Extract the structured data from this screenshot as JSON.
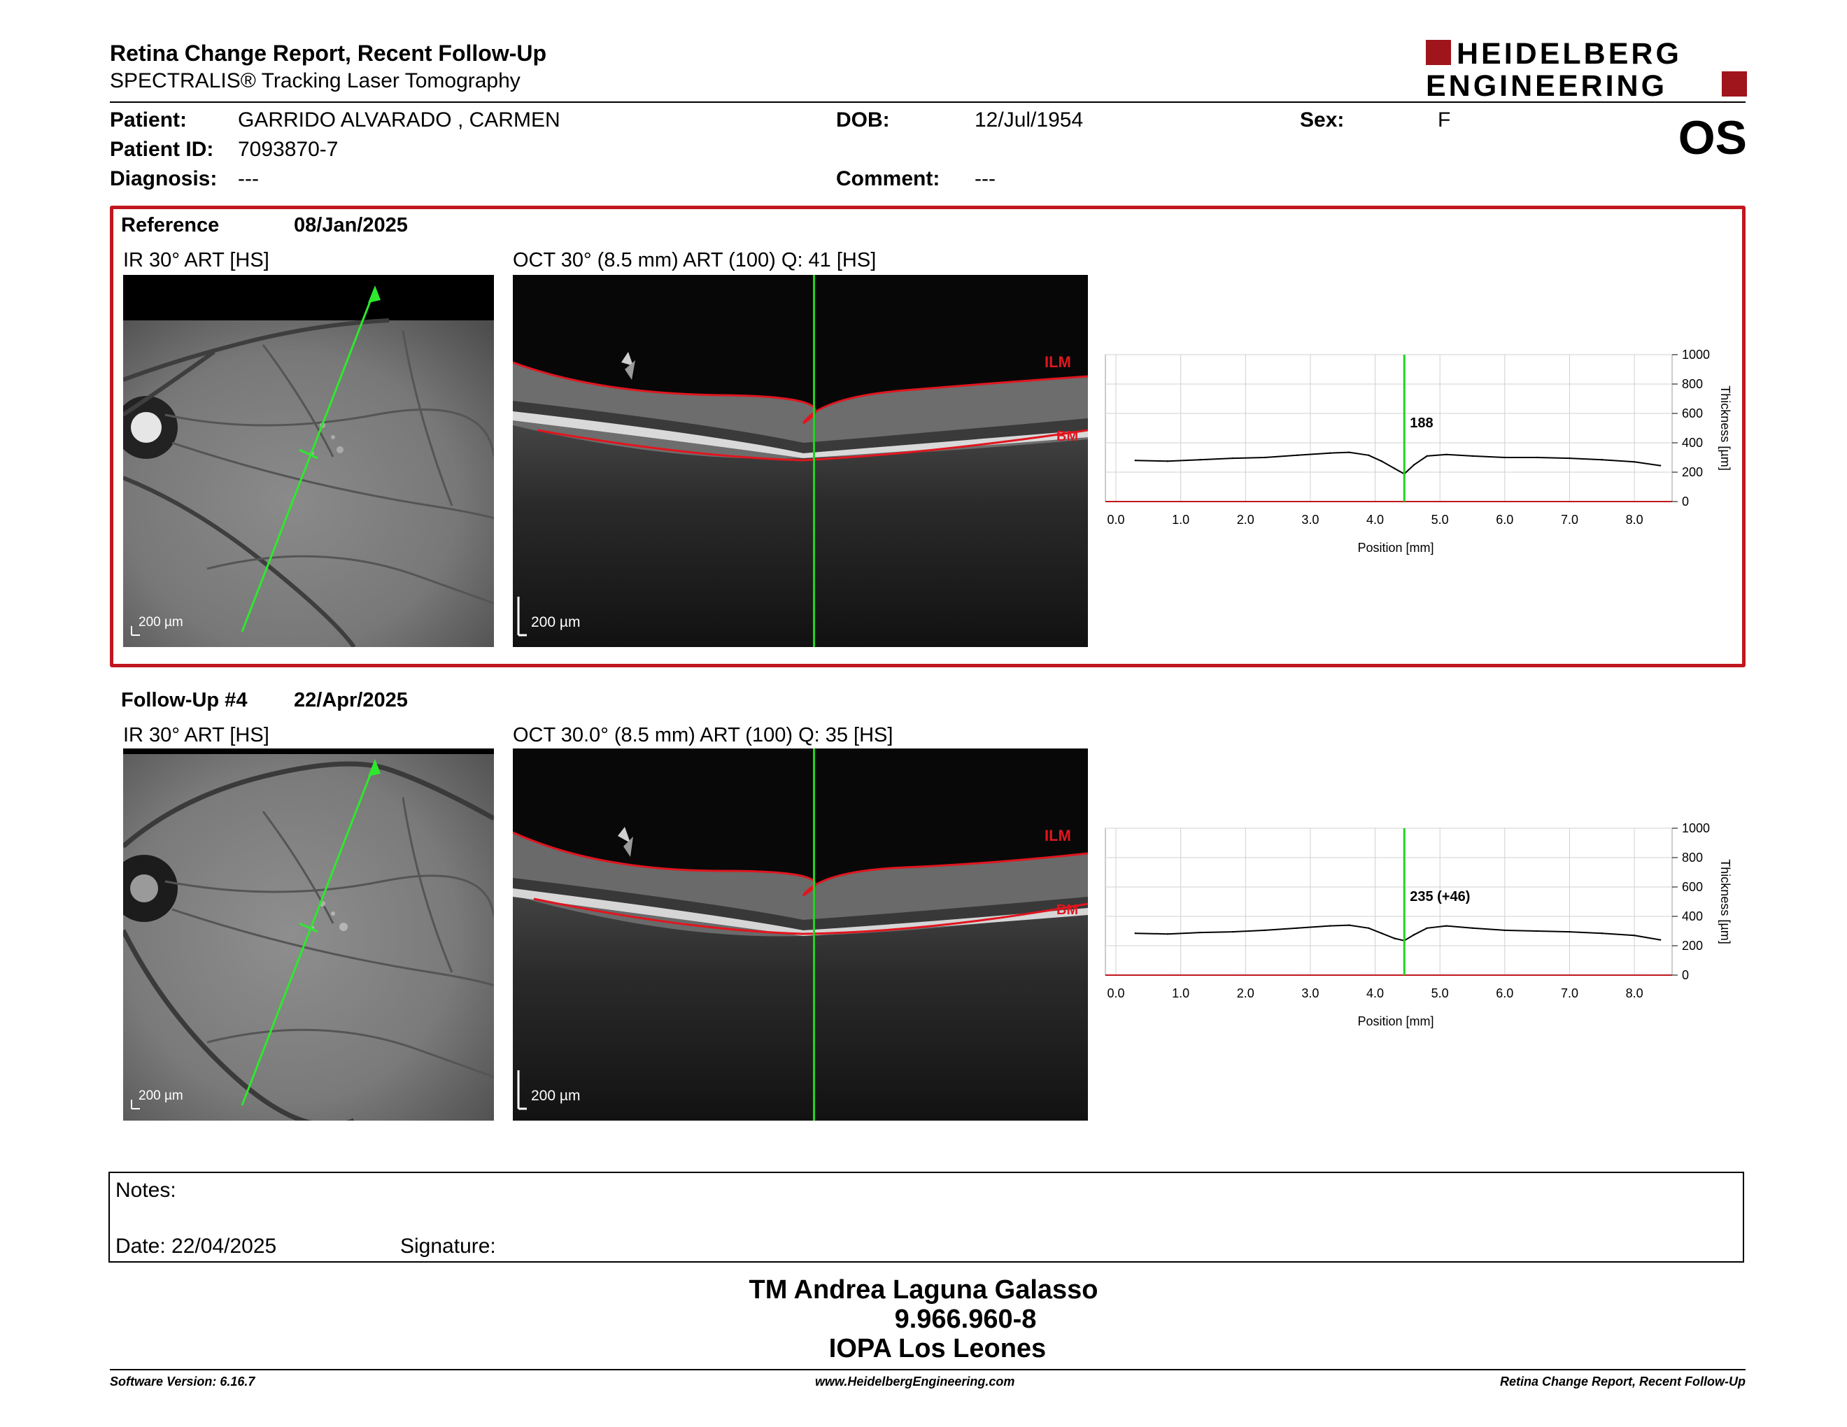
{
  "header": {
    "title": "Retina Change Report, Recent Follow-Up",
    "subtitle": "SPECTRALIS® Tracking Laser Tomography",
    "logo_line1": "HEIDELBERG",
    "logo_line2": "ENGINEERING",
    "eye": "OS"
  },
  "patient": {
    "patient_label": "Patient:",
    "patient_value": "GARRIDO ALVARADO , CARMEN",
    "id_label": "Patient ID:",
    "id_value": "7093870-7",
    "diagnosis_label": "Diagnosis:",
    "diagnosis_value": "---",
    "dob_label": "DOB:",
    "dob_value": "12/Jul/1954",
    "comment_label": "Comment:",
    "comment_value": "---",
    "sex_label": "Sex:",
    "sex_value": "F"
  },
  "reference": {
    "label": "Reference",
    "date": "08/Jan/2025",
    "ir_title": "IR 30° ART [HS]",
    "oct_title": "OCT 30° (8.5 mm) ART (100) Q: 41 [HS]",
    "ir_scale": "200 µm",
    "oct_scale": "200 µm",
    "ilm": "ILM",
    "bm": "BM"
  },
  "followup": {
    "label": "Follow-Up #4",
    "date": "22/Apr/2025",
    "ir_title": "IR 30° ART [HS]",
    "oct_title": "OCT 30.0° (8.5 mm) ART (100) Q: 35 [HS]",
    "ir_scale": "200 µm",
    "oct_scale": "200 µm",
    "ilm": "ILM",
    "bm": "BM"
  },
  "chart_data": [
    {
      "type": "line",
      "ylabel": "Thickness [µm]",
      "xlabel": "Position [mm]",
      "xlim": [
        0,
        8.5
      ],
      "ylim": [
        0,
        1000
      ],
      "xticks": [
        "0.0",
        "1.0",
        "2.0",
        "3.0",
        "4.0",
        "5.0",
        "6.0",
        "7.0",
        "8.0"
      ],
      "yticks": [
        "0",
        "200",
        "400",
        "600",
        "800",
        "1000"
      ],
      "cursor_x": 4.45,
      "cursor_label": "188",
      "x": [
        0.3,
        0.8,
        1.3,
        1.8,
        2.3,
        2.8,
        3.3,
        3.6,
        3.9,
        4.1,
        4.3,
        4.45,
        4.6,
        4.8,
        5.1,
        5.5,
        6.0,
        6.5,
        7.0,
        7.5,
        8.0,
        8.4
      ],
      "series": [
        {
          "values": [
            280,
            275,
            285,
            295,
            300,
            315,
            330,
            335,
            315,
            275,
            225,
            188,
            250,
            310,
            320,
            310,
            300,
            300,
            295,
            285,
            270,
            245
          ]
        }
      ]
    },
    {
      "type": "line",
      "ylabel": "Thickness [µm]",
      "xlabel": "Position [mm]",
      "xlim": [
        0,
        8.5
      ],
      "ylim": [
        0,
        1000
      ],
      "xticks": [
        "0.0",
        "1.0",
        "2.0",
        "3.0",
        "4.0",
        "5.0",
        "6.0",
        "7.0",
        "8.0"
      ],
      "yticks": [
        "0",
        "200",
        "400",
        "600",
        "800",
        "1000"
      ],
      "cursor_x": 4.45,
      "cursor_label": "235 (+46)",
      "x": [
        0.3,
        0.8,
        1.3,
        1.8,
        2.3,
        2.8,
        3.3,
        3.6,
        3.9,
        4.1,
        4.3,
        4.45,
        4.6,
        4.8,
        5.1,
        5.5,
        6.0,
        6.5,
        7.0,
        7.5,
        8.0,
        8.4
      ],
      "series": [
        {
          "values": [
            285,
            280,
            290,
            295,
            305,
            320,
            335,
            340,
            320,
            285,
            250,
            235,
            275,
            320,
            335,
            320,
            305,
            300,
            295,
            285,
            270,
            240
          ]
        }
      ]
    }
  ],
  "notes": {
    "notes_label": "Notes:",
    "date_label": "Date: 22/04/2025",
    "signature_label": "Signature:"
  },
  "signature": {
    "name": "TM Andrea Laguna Galasso",
    "rut": "9.966.960-8",
    "institution": "IOPA Los Leones"
  },
  "footer": {
    "software": "Software Version: 6.16.7",
    "website": "www.HeidelbergEngineering.com",
    "report": "Retina Change Report, Recent Follow-Up"
  },
  "colors": {
    "accent": "#c0171e",
    "cursor": "#21d321",
    "ir_arrow": "#2ee82e"
  }
}
